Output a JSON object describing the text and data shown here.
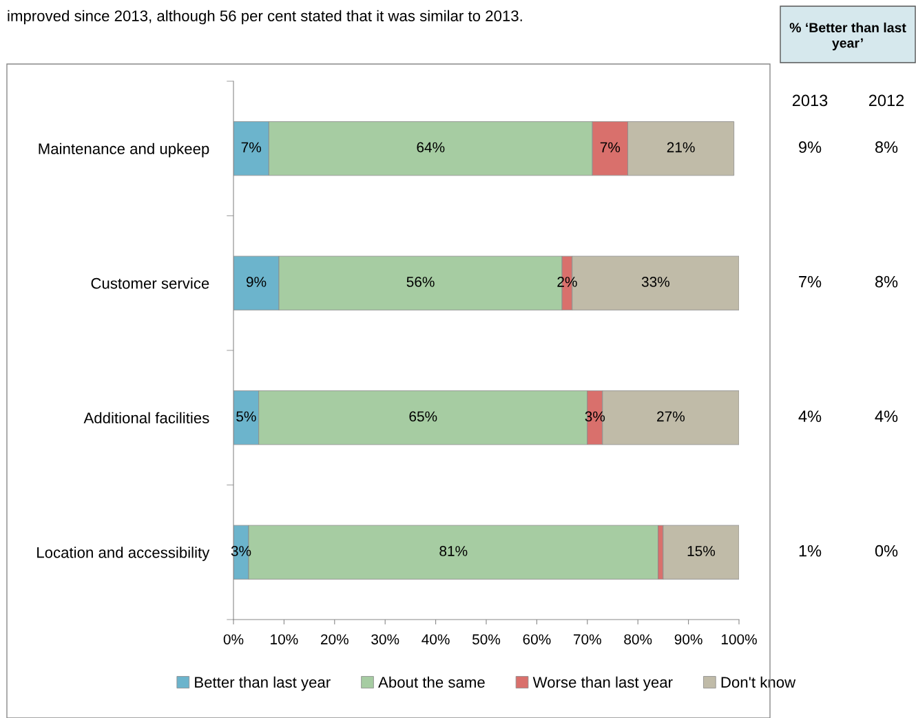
{
  "chart_data": {
    "type": "bar",
    "orientation": "horizontal",
    "stacked": true,
    "title": "improved since 2013, although 56 per cent stated that it was similar to 2013.",
    "categories": [
      "Maintenance and upkeep",
      "Customer service",
      "Additional facilities",
      "Location and accessibility"
    ],
    "series": [
      {
        "name": "Better than last year",
        "color": "#6cb4cc",
        "values": [
          7,
          9,
          5,
          3
        ],
        "value_labels": [
          "7%",
          "9%",
          "5%",
          "3%"
        ]
      },
      {
        "name": "About the same",
        "color": "#a6cca2",
        "values": [
          64,
          56,
          65,
          81
        ],
        "value_labels": [
          "64%",
          "56%",
          "65%",
          "81%"
        ]
      },
      {
        "name": "Worse than last year",
        "color": "#d9706c",
        "values": [
          7,
          2,
          3,
          1
        ],
        "value_labels": [
          "7%",
          "2%",
          "3%",
          null
        ]
      },
      {
        "name": "Don't know",
        "color": "#c0bba8",
        "values": [
          21,
          33,
          27,
          15
        ],
        "value_labels": [
          "21%",
          "33%",
          "27%",
          "15%"
        ]
      }
    ],
    "xlim": [
      0,
      100
    ],
    "xticks": [
      {
        "value": 0,
        "label": "0%"
      },
      {
        "value": 10,
        "label": "10%"
      },
      {
        "value": 20,
        "label": "20%"
      },
      {
        "value": 30,
        "label": "30%"
      },
      {
        "value": 40,
        "label": "40%"
      },
      {
        "value": 50,
        "label": "50%"
      },
      {
        "value": 60,
        "label": "60%"
      },
      {
        "value": 70,
        "label": "70%"
      },
      {
        "value": 80,
        "label": "80%"
      },
      {
        "value": 90,
        "label": "90%"
      },
      {
        "value": 100,
        "label": "100%"
      }
    ],
    "legend": "bottom",
    "grid": false,
    "annotations": [
      "% ‘Better than last year’",
      "2013",
      "2012",
      "9%",
      "8%",
      "7%",
      "8%",
      "4%",
      "4%",
      "1%",
      "0%"
    ]
  }
}
